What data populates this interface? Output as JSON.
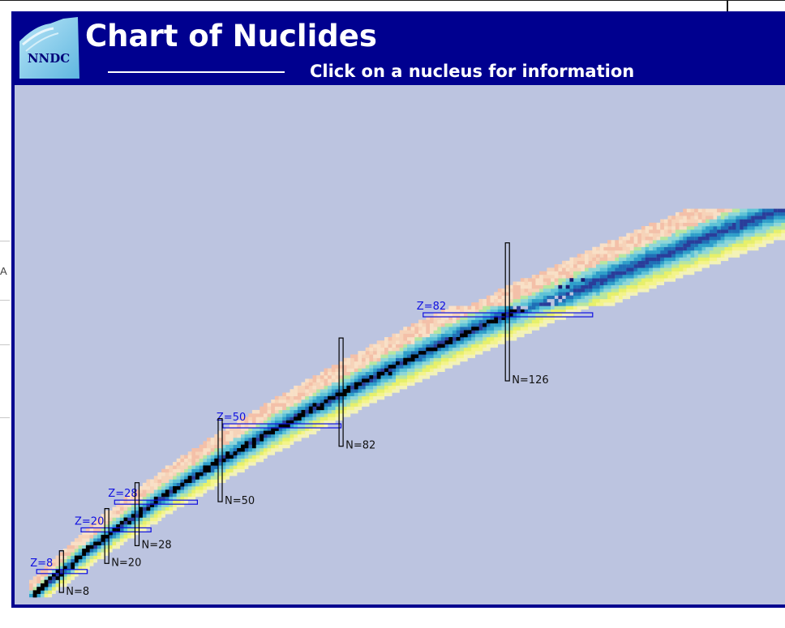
{
  "header": {
    "logo_text": "NNDC",
    "title": "Chart of Nuclides",
    "subtitle": "Click on a nucleus for information"
  },
  "side": {
    "partial_letter": "A"
  },
  "colors": {
    "header_bg": "#00008f",
    "plot_bg": "#bcc4e0",
    "stable": "#000000",
    "magic_z_marker": "#1010e0",
    "magic_n_marker": "#000000"
  },
  "chart_data": {
    "type": "heatmap",
    "x_quantity": "neutron number N",
    "y_quantity": "proton number Z",
    "magic_numbers_z": [
      {
        "value": 8,
        "label": "Z=8"
      },
      {
        "value": 20,
        "label": "Z=20"
      },
      {
        "value": 28,
        "label": "Z=28"
      },
      {
        "value": 50,
        "label": "Z=50"
      },
      {
        "value": 82,
        "label": "Z=82"
      }
    ],
    "magic_numbers_n": [
      {
        "value": 8,
        "label": "N=8"
      },
      {
        "value": 20,
        "label": "N=20"
      },
      {
        "value": 28,
        "label": "N=28"
      },
      {
        "value": 50,
        "label": "N=50"
      },
      {
        "value": 82,
        "label": "N=82"
      },
      {
        "value": 126,
        "label": "N=126"
      }
    ],
    "xlim": [
      0,
      177
    ],
    "ylim": [
      0,
      118
    ],
    "grid": false,
    "legend": "none"
  }
}
